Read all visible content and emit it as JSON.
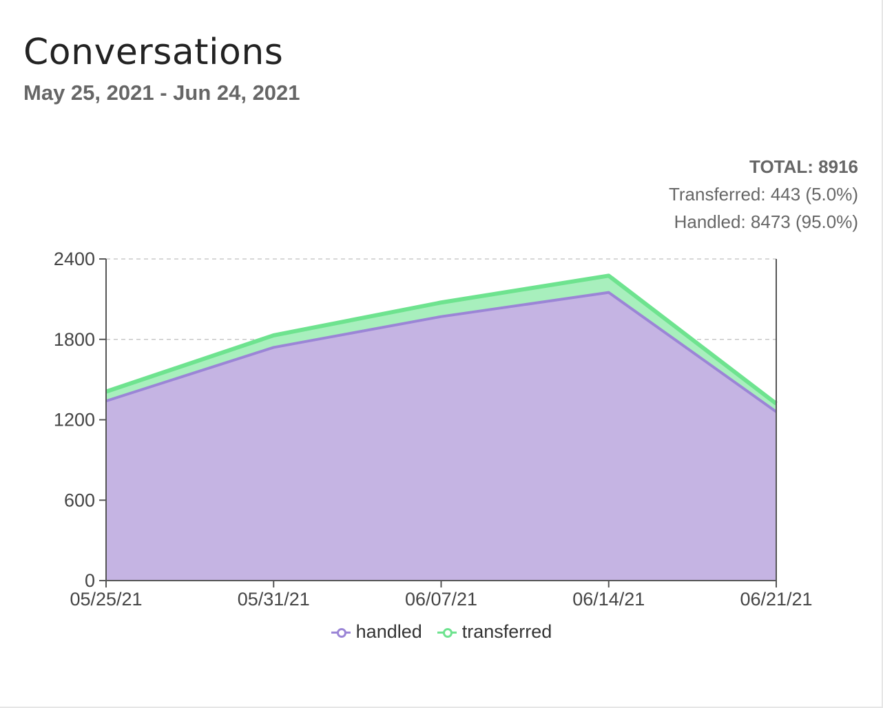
{
  "header": {
    "title": "Conversations",
    "date_range": "May 25, 2021 - Jun 24, 2021"
  },
  "summary": {
    "total_label": "TOTAL: 8916",
    "transferred_label": "Transferred: 443 (5.0%)",
    "handled_label": "Handled: 8473 (95.0%)"
  },
  "colors": {
    "handled_fill": "#c5b4e3",
    "handled_line": "#9b85d6",
    "transferred_fill": "#a8efbd",
    "transferred_line": "#6ee38f",
    "grid": "#c8c8c8",
    "axis": "#555555"
  },
  "chart_data": {
    "type": "area",
    "stacked": true,
    "title": "",
    "xlabel": "",
    "ylabel": "",
    "x": [
      "05/25/21",
      "05/31/21",
      "06/07/21",
      "06/14/21",
      "06/21/21"
    ],
    "ylim": [
      0,
      2400
    ],
    "yticks": [
      0,
      600,
      1200,
      1800,
      2400
    ],
    "grid": true,
    "legend": "bottom-center",
    "series": [
      {
        "name": "handled",
        "values": [
          1340,
          1740,
          1970,
          2150,
          1260
        ]
      },
      {
        "name": "transferred",
        "values": [
          70,
          90,
          105,
          125,
          60
        ]
      }
    ]
  }
}
